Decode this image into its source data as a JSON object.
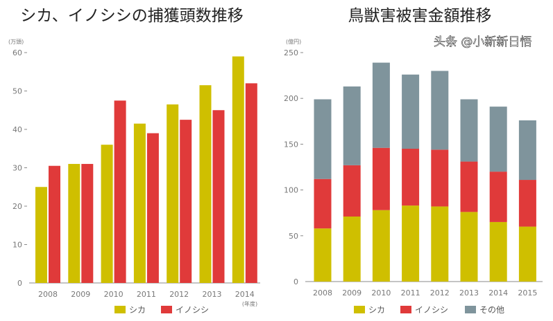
{
  "chart_data": [
    {
      "type": "bar",
      "title": "シカ、イノシシの捕獲頭数推移",
      "ylabel": "(万頭)",
      "xlabel": "(年度)",
      "ylim": [
        0,
        60
      ],
      "yticks": [
        "0",
        "10",
        "20",
        "30",
        "40",
        "50",
        "60"
      ],
      "categories": [
        "2008",
        "2009",
        "2010",
        "2011",
        "2012",
        "2013",
        "2014"
      ],
      "series": [
        {
          "name": "シカ",
          "color": "#cfbf00",
          "values": [
            25,
            31,
            36,
            41.5,
            46.5,
            51.5,
            59
          ]
        },
        {
          "name": "イノシシ",
          "color": "#e03a3a",
          "values": [
            30.5,
            31,
            47.5,
            39,
            42.5,
            45,
            52
          ]
        }
      ],
      "legend": "bottom"
    },
    {
      "type": "bar",
      "stacked": true,
      "title": "鳥獣害被害金額推移",
      "ylabel": "(億円)",
      "ylim": [
        0,
        250
      ],
      "yticks": [
        "0",
        "50",
        "100",
        "150",
        "200",
        "250"
      ],
      "categories": [
        "2008",
        "2009",
        "2010",
        "2011",
        "2012",
        "2013",
        "2014",
        "2015"
      ],
      "series": [
        {
          "name": "シカ",
          "color": "#cfbf00",
          "values": [
            58,
            71,
            78,
            83,
            82,
            76,
            65,
            60
          ]
        },
        {
          "name": "イノシシ",
          "color": "#e03a3a",
          "values": [
            54,
            56,
            68,
            62,
            62,
            55,
            55,
            51
          ]
        },
        {
          "name": "その他",
          "color": "#7f949c",
          "values": [
            87,
            86,
            93,
            81,
            86,
            68,
            71,
            65
          ]
        }
      ],
      "legend": "bottom"
    }
  ],
  "watermark": "头条 @小新新日悟"
}
